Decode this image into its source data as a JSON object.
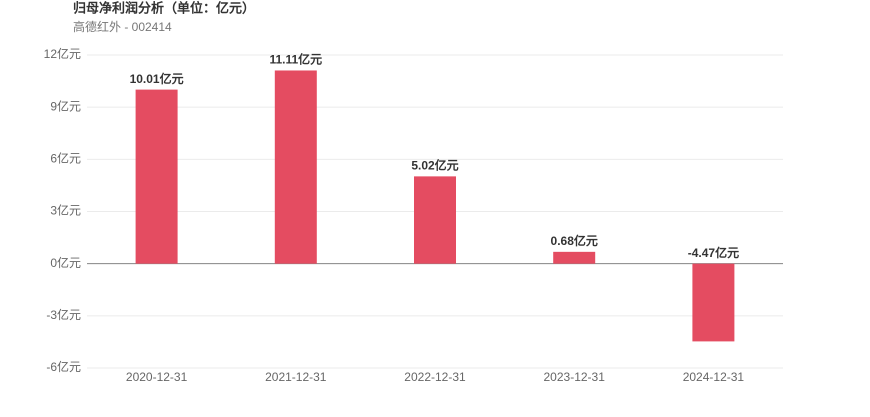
{
  "chart_data": {
    "type": "bar",
    "title": "归母净利润分析（单位：亿元）",
    "subtitle": "高德红外 - 002414",
    "categories": [
      "2020-12-31",
      "2021-12-31",
      "2022-12-31",
      "2023-12-31",
      "2024-12-31"
    ],
    "values": [
      10.01,
      11.11,
      5.02,
      0.68,
      -4.47
    ],
    "value_labels": [
      "10.01亿元",
      "11.11亿元",
      "5.02亿元",
      "0.68亿元",
      "-4.47亿元"
    ],
    "color": "#e44c61",
    "ylim": [
      -6,
      12
    ],
    "yticks": [
      {
        "value": -6,
        "label": "-6亿元"
      },
      {
        "value": -3,
        "label": "-3亿元"
      },
      {
        "value": 0,
        "label": "0亿元"
      },
      {
        "value": 3,
        "label": "3亿元"
      },
      {
        "value": 6,
        "label": "6亿元"
      },
      {
        "value": 9,
        "label": "9亿元"
      },
      {
        "value": 12,
        "label": "12亿元"
      }
    ],
    "grid": true
  }
}
